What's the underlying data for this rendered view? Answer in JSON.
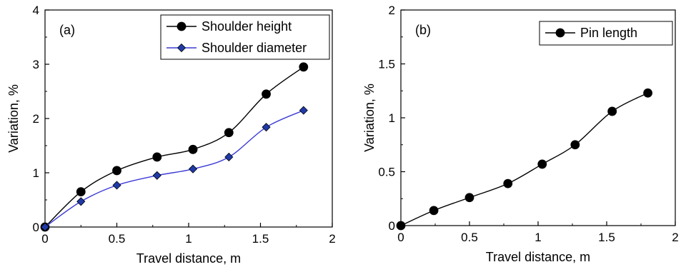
{
  "chart_data": [
    {
      "type": "line",
      "panel_label": "(a)",
      "xlabel": "Travel distance, m",
      "ylabel": "Variation, %",
      "xlim": [
        0,
        2
      ],
      "ylim": [
        0,
        4
      ],
      "xticks": [
        0,
        0.5,
        1,
        1.5,
        2
      ],
      "xtick_labels": [
        "0",
        "0.5",
        "1",
        "1.5",
        "2"
      ],
      "yticks": [
        0,
        1,
        2,
        3,
        4
      ],
      "ytick_labels": [
        "0",
        "1",
        "2",
        "3",
        "4"
      ],
      "grid": false,
      "legend_position": "top-right",
      "series": [
        {
          "name": "Shoulder height",
          "marker": "circle",
          "color": "#000000",
          "marker_fill": "#000000",
          "x": [
            0,
            0.25,
            0.5,
            0.78,
            1.03,
            1.28,
            1.54,
            1.8
          ],
          "y": [
            0,
            0.65,
            1.04,
            1.29,
            1.43,
            1.74,
            2.45,
            2.95
          ]
        },
        {
          "name": "Shoulder diameter",
          "marker": "diamond",
          "color": "#3b3bd6",
          "marker_fill": "#1f3aa8",
          "x": [
            0,
            0.25,
            0.5,
            0.78,
            1.03,
            1.28,
            1.54,
            1.8
          ],
          "y": [
            0,
            0.47,
            0.77,
            0.95,
            1.07,
            1.29,
            1.84,
            2.15
          ]
        }
      ]
    },
    {
      "type": "line",
      "panel_label": "(b)",
      "xlabel": "Travel distance, m",
      "ylabel": "Variation, %",
      "xlim": [
        0,
        2
      ],
      "ylim": [
        0,
        2
      ],
      "xticks": [
        0,
        0.5,
        1,
        1.5,
        2
      ],
      "xtick_labels": [
        "0",
        "0.5",
        "1",
        "1.5",
        "2"
      ],
      "yticks": [
        0,
        0.5,
        1,
        1.5,
        2
      ],
      "ytick_labels": [
        "0",
        "0.5",
        "1",
        "1.5",
        "2"
      ],
      "grid": false,
      "legend_position": "top-right",
      "series": [
        {
          "name": "Pin length",
          "marker": "circle",
          "color": "#000000",
          "marker_fill": "#000000",
          "x": [
            0,
            0.24,
            0.5,
            0.78,
            1.03,
            1.27,
            1.54,
            1.8
          ],
          "y": [
            0,
            0.14,
            0.26,
            0.39,
            0.57,
            0.75,
            1.06,
            1.23
          ]
        }
      ]
    }
  ]
}
